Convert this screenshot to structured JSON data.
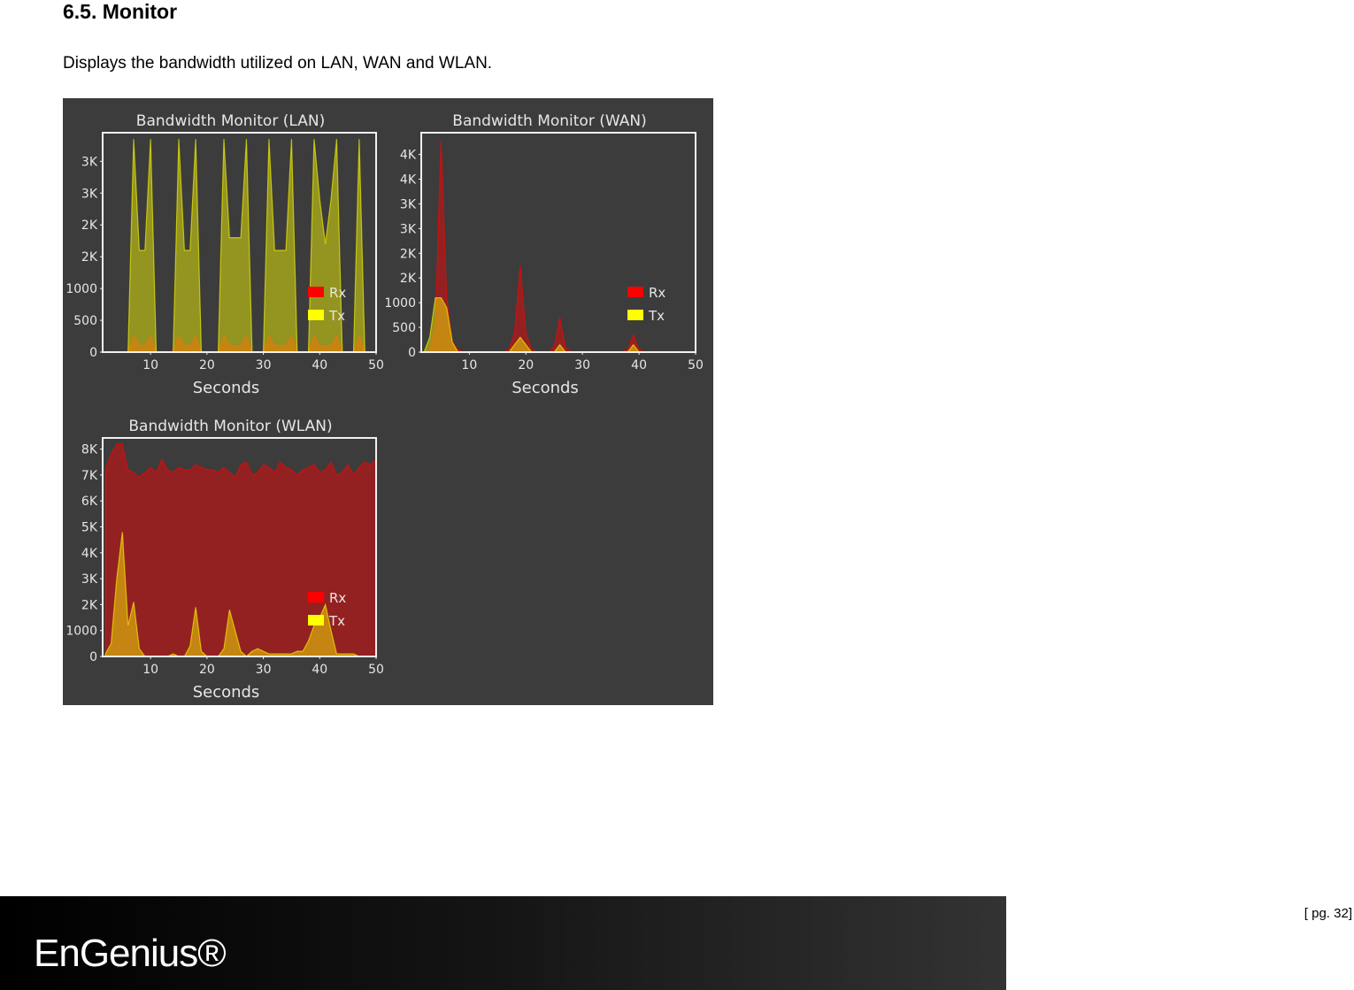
{
  "header": {
    "title": "6.5.  Monitor"
  },
  "body": {
    "text": "Displays the bandwidth utilized on LAN, WAN and WLAN."
  },
  "chart_data": [
    {
      "type": "area",
      "title": "Bandwidth Monitor (LAN)",
      "x_label": "Seconds",
      "x": [
        2,
        3,
        4,
        5,
        6,
        7,
        8,
        9,
        10,
        11,
        12,
        13,
        14,
        15,
        16,
        17,
        18,
        19,
        20,
        21,
        22,
        23,
        24,
        25,
        26,
        27,
        28,
        29,
        30,
        31,
        32,
        33,
        34,
        35,
        36,
        37,
        38,
        39,
        40,
        41,
        42,
        43,
        44,
        45,
        46,
        47,
        48,
        49,
        50
      ],
      "xlim": [
        1.5,
        50
      ],
      "xticks": [
        10,
        20,
        30,
        40,
        50
      ],
      "ylim": [
        0,
        3450
      ],
      "yticks": [
        0,
        500,
        1000,
        {
          "value": 1500,
          "label": "2K"
        },
        {
          "value": 2000,
          "label": "2K"
        },
        {
          "value": 2500,
          "label": "3K"
        },
        {
          "value": 3000,
          "label": "3K"
        }
      ],
      "series": [
        {
          "name": "Rx",
          "color": "#ff0000",
          "values": [
            0,
            0,
            0,
            0,
            0,
            250,
            100,
            100,
            250,
            0,
            0,
            0,
            0,
            250,
            100,
            100,
            250,
            0,
            0,
            0,
            0,
            250,
            100,
            100,
            100,
            250,
            0,
            0,
            0,
            250,
            100,
            100,
            100,
            250,
            0,
            0,
            0,
            250,
            100,
            100,
            100,
            250,
            0,
            0,
            0,
            250,
            0,
            0,
            0
          ]
        },
        {
          "name": "Tx",
          "color": "#ffff00",
          "values": [
            0,
            0,
            0,
            0,
            0,
            3350,
            1600,
            1600,
            3350,
            0,
            0,
            0,
            0,
            3350,
            1600,
            1600,
            3350,
            0,
            0,
            0,
            0,
            3350,
            1800,
            1800,
            1800,
            3350,
            0,
            0,
            0,
            3350,
            1600,
            1600,
            1600,
            3350,
            0,
            0,
            0,
            3350,
            2400,
            1700,
            2400,
            3350,
            0,
            0,
            0,
            3350,
            0,
            0,
            0
          ]
        }
      ]
    },
    {
      "type": "area",
      "title": "Bandwidth Monitor (WAN)",
      "x_label": "Seconds",
      "x": [
        2,
        3,
        4,
        5,
        6,
        7,
        8,
        9,
        10,
        11,
        12,
        13,
        14,
        15,
        16,
        17,
        18,
        19,
        20,
        21,
        22,
        23,
        24,
        25,
        26,
        27,
        28,
        29,
        30,
        31,
        32,
        33,
        34,
        35,
        36,
        37,
        38,
        39,
        40,
        41,
        42,
        43,
        44,
        45,
        46,
        47,
        48,
        49,
        50
      ],
      "xlim": [
        1.5,
        50
      ],
      "xticks": [
        10,
        20,
        30,
        40,
        50
      ],
      "ylim": [
        0,
        4440
      ],
      "yticks": [
        0,
        500,
        1000,
        {
          "value": 1500,
          "label": "2K"
        },
        {
          "value": 2000,
          "label": "2K"
        },
        {
          "value": 2500,
          "label": "3K"
        },
        {
          "value": 3000,
          "label": "3K"
        },
        {
          "value": 3500,
          "label": "4K"
        },
        {
          "value": 4000,
          "label": "4K"
        }
      ],
      "series": [
        {
          "name": "Rx",
          "color": "#ff0000",
          "values": [
            0,
            0,
            600,
            4300,
            1100,
            200,
            50,
            0,
            0,
            0,
            0,
            0,
            0,
            0,
            0,
            50,
            400,
            1750,
            400,
            50,
            0,
            0,
            0,
            100,
            700,
            100,
            0,
            0,
            0,
            0,
            0,
            0,
            0,
            0,
            0,
            0,
            50,
            350,
            50,
            0,
            0,
            0,
            0,
            0,
            0,
            0,
            0,
            0,
            0
          ]
        },
        {
          "name": "Tx",
          "color": "#ffff00",
          "values": [
            0,
            300,
            1100,
            1100,
            900,
            200,
            0,
            0,
            0,
            0,
            0,
            0,
            0,
            0,
            0,
            0,
            150,
            300,
            150,
            0,
            0,
            0,
            0,
            0,
            150,
            0,
            0,
            0,
            0,
            0,
            0,
            0,
            0,
            0,
            0,
            0,
            0,
            150,
            0,
            0,
            0,
            0,
            0,
            0,
            0,
            0,
            0,
            0,
            0
          ]
        }
      ]
    },
    {
      "type": "area",
      "title": "Bandwidth Monitor (WLAN)",
      "x_label": "Seconds",
      "x": [
        2,
        3,
        4,
        5,
        6,
        7,
        8,
        9,
        10,
        11,
        12,
        13,
        14,
        15,
        16,
        17,
        18,
        19,
        20,
        21,
        22,
        23,
        24,
        25,
        26,
        27,
        28,
        29,
        30,
        31,
        32,
        33,
        34,
        35,
        36,
        37,
        38,
        39,
        40,
        41,
        42,
        43,
        44,
        45,
        46,
        47,
        48,
        49,
        50
      ],
      "xlim": [
        1.5,
        50
      ],
      "xticks": [
        10,
        20,
        30,
        40,
        50
      ],
      "ylim": [
        0,
        8430
      ],
      "yticks": [
        0,
        1000,
        {
          "value": 2000,
          "label": "2K"
        },
        {
          "value": 3000,
          "label": "3K"
        },
        {
          "value": 4000,
          "label": "4K"
        },
        {
          "value": 5000,
          "label": "5K"
        },
        {
          "value": 6000,
          "label": "6K"
        },
        {
          "value": 7000,
          "label": "7K"
        },
        {
          "value": 8000,
          "label": "8K"
        }
      ],
      "series": [
        {
          "name": "Rx",
          "color": "#ff0000",
          "values": [
            7200,
            7800,
            8200,
            8200,
            7200,
            7100,
            6900,
            7100,
            7300,
            7100,
            7600,
            7200,
            7100,
            7300,
            7200,
            7200,
            7400,
            7300,
            7200,
            7200,
            7100,
            7300,
            7100,
            6900,
            7400,
            7500,
            7000,
            7100,
            7400,
            7300,
            7100,
            7500,
            7300,
            7200,
            7000,
            7200,
            7300,
            7400,
            7100,
            7200,
            7500,
            7000,
            7100,
            7400,
            7000,
            7300,
            7500,
            7400,
            7600
          ]
        },
        {
          "name": "Tx",
          "color": "#ffff00",
          "values": [
            100,
            500,
            3000,
            4800,
            1200,
            2100,
            300,
            0,
            0,
            0,
            0,
            0,
            100,
            0,
            0,
            400,
            1900,
            200,
            0,
            0,
            0,
            300,
            1800,
            1000,
            200,
            0,
            200,
            300,
            200,
            100,
            100,
            100,
            100,
            100,
            200,
            200,
            600,
            1200,
            1500,
            2000,
            1000,
            100,
            100,
            100,
            100,
            0,
            0,
            0,
            0
          ]
        }
      ]
    }
  ],
  "footer": {
    "logo": "EnGenius®",
    "page": "[ pg. 32]"
  }
}
